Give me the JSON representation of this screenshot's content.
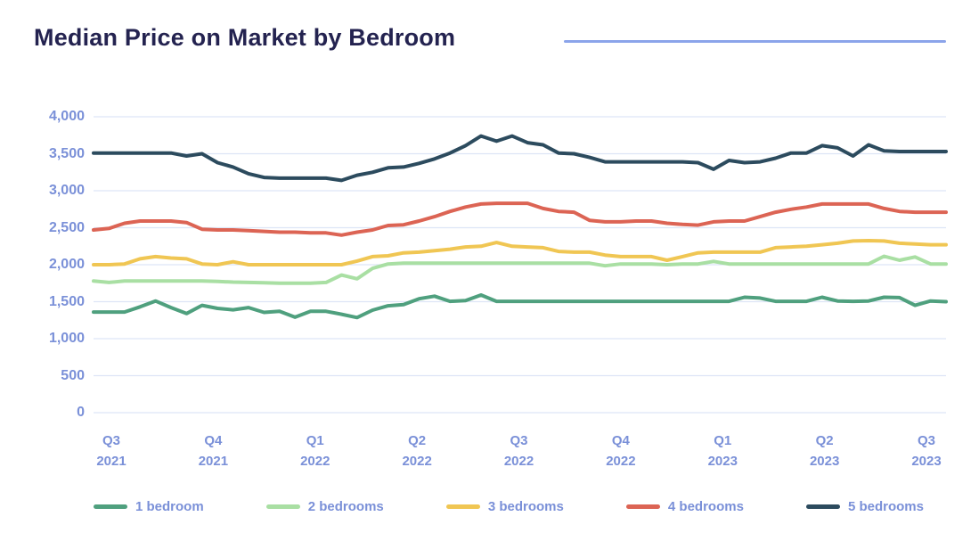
{
  "page": {
    "title": "Median Price on Market by Bedroom",
    "background": "#ffffff",
    "title_color": "#242350",
    "accent_rule_color": "#8ba4ea"
  },
  "axis": {
    "text_color": "#7a90d8",
    "grid_color": "#dde5f6"
  },
  "chart_data": {
    "type": "line",
    "title": "Median Price on Market by Bedroom",
    "xlabel": "",
    "ylabel": "",
    "ylim": [
      0,
      4000
    ],
    "grid": "horizontal-only",
    "legend_position": "bottom",
    "y_ticks": [
      0,
      500,
      1000,
      1500,
      2000,
      2500,
      3000,
      3500,
      4000
    ],
    "y_tick_labels": [
      "0",
      "500",
      "1,000",
      "1,500",
      "2,000",
      "2,500",
      "3,000",
      "3,500",
      "4,000"
    ],
    "x_tick_labels": [
      [
        "Q3",
        "2021"
      ],
      [
        "Q4",
        "2021"
      ],
      [
        "Q1",
        "2022"
      ],
      [
        "Q2",
        "2022"
      ],
      [
        "Q3",
        "2022"
      ],
      [
        "Q4",
        "2022"
      ],
      [
        "Q1",
        "2023"
      ],
      [
        "Q2",
        "2023"
      ],
      [
        "Q3",
        "2023"
      ]
    ],
    "series": [
      {
        "name": "1 bedroom",
        "color": "#4fa07e",
        "values": [
          1360,
          1360,
          1360,
          1430,
          1510,
          1420,
          1340,
          1450,
          1410,
          1390,
          1420,
          1355,
          1370,
          1290,
          1370,
          1370,
          1330,
          1285,
          1385,
          1445,
          1460,
          1540,
          1575,
          1505,
          1515,
          1590,
          1505,
          1505,
          1505,
          1505,
          1505,
          1505,
          1505,
          1505,
          1505,
          1505,
          1505,
          1505,
          1505,
          1505,
          1505,
          1505,
          1560,
          1550,
          1505,
          1505,
          1505,
          1560,
          1510,
          1505,
          1510,
          1560,
          1555,
          1450,
          1510,
          1500
        ]
      },
      {
        "name": "2 bedrooms",
        "color": "#a9dfa3",
        "values": [
          1780,
          1760,
          1780,
          1780,
          1780,
          1780,
          1780,
          1780,
          1775,
          1765,
          1760,
          1755,
          1750,
          1750,
          1750,
          1760,
          1860,
          1810,
          1950,
          2010,
          2020,
          2020,
          2020,
          2020,
          2020,
          2020,
          2020,
          2020,
          2020,
          2020,
          2020,
          2020,
          2020,
          1985,
          2010,
          2010,
          2010,
          2000,
          2010,
          2010,
          2045,
          2010,
          2010,
          2010,
          2010,
          2010,
          2010,
          2010,
          2010,
          2010,
          2010,
          2115,
          2060,
          2105,
          2010,
          2010
        ]
      },
      {
        "name": "3 bedrooms",
        "color": "#f0c653",
        "values": [
          2000,
          2000,
          2010,
          2080,
          2110,
          2090,
          2080,
          2010,
          2000,
          2040,
          2000,
          2000,
          2000,
          2000,
          2000,
          2000,
          2000,
          2050,
          2110,
          2120,
          2160,
          2170,
          2190,
          2210,
          2240,
          2250,
          2300,
          2250,
          2240,
          2230,
          2180,
          2170,
          2170,
          2130,
          2110,
          2110,
          2110,
          2060,
          2110,
          2160,
          2170,
          2170,
          2170,
          2170,
          2230,
          2240,
          2250,
          2270,
          2290,
          2320,
          2325,
          2320,
          2290,
          2280,
          2270,
          2270
        ]
      },
      {
        "name": "4 bedrooms",
        "color": "#dc6454",
        "values": [
          2470,
          2490,
          2560,
          2590,
          2590,
          2590,
          2570,
          2480,
          2470,
          2470,
          2460,
          2450,
          2440,
          2440,
          2430,
          2430,
          2400,
          2440,
          2470,
          2530,
          2540,
          2590,
          2650,
          2720,
          2780,
          2820,
          2830,
          2830,
          2830,
          2760,
          2720,
          2710,
          2600,
          2580,
          2580,
          2590,
          2590,
          2560,
          2545,
          2535,
          2580,
          2590,
          2590,
          2650,
          2710,
          2750,
          2780,
          2820,
          2820,
          2820,
          2820,
          2760,
          2720,
          2710,
          2710,
          2710
        ]
      },
      {
        "name": "5 bedrooms",
        "color": "#2c4b5e",
        "values": [
          3510,
          3510,
          3510,
          3510,
          3510,
          3510,
          3470,
          3500,
          3380,
          3320,
          3230,
          3180,
          3170,
          3170,
          3170,
          3170,
          3140,
          3210,
          3250,
          3310,
          3320,
          3370,
          3430,
          3510,
          3610,
          3740,
          3670,
          3740,
          3650,
          3620,
          3510,
          3500,
          3450,
          3390,
          3390,
          3390,
          3390,
          3390,
          3390,
          3380,
          3290,
          3410,
          3380,
          3390,
          3440,
          3510,
          3510,
          3610,
          3580,
          3470,
          3620,
          3540,
          3530,
          3530,
          3530,
          3530
        ]
      }
    ]
  }
}
